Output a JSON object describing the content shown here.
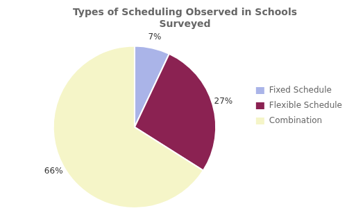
{
  "chart_data": {
    "type": "pie",
    "title": "Types of Scheduling Observed in Schools\nSurveyed",
    "categories": [
      "Fixed Schedule",
      "Flexible Schedule",
      "Combination"
    ],
    "values": [
      7,
      27,
      66
    ],
    "value_labels": [
      "7%",
      "27%",
      "66%"
    ],
    "colors": [
      "#aab4e8",
      "#8b2252",
      "#f5f5c8"
    ],
    "data_labels": true,
    "legend": "right"
  }
}
